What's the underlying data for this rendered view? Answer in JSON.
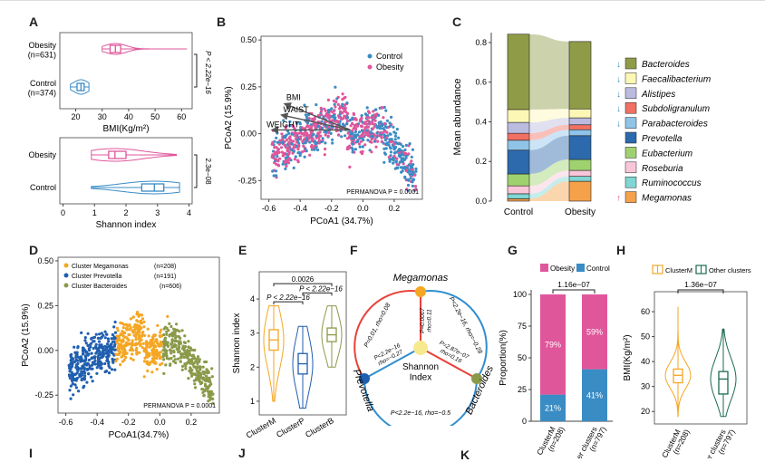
{
  "panel_labels": [
    "A",
    "B",
    "C",
    "D",
    "E",
    "F",
    "G",
    "H",
    "I",
    "J",
    "K"
  ],
  "chart_data": [
    {
      "id": "A_bmi",
      "type": "violin",
      "categories": [
        "Obesity\n(n=631)",
        "Control\n(n=374)"
      ],
      "xlabel": "BMI(Kg/m²)",
      "xlim": [
        14,
        64
      ],
      "xticks": [
        20,
        30,
        40,
        50,
        60
      ],
      "stats": [
        {
          "group": "Obesity",
          "n": 631,
          "min": 30,
          "q1": 33,
          "median": 35,
          "q3": 37,
          "max": 62
        },
        {
          "group": "Control",
          "n": 374,
          "min": 18,
          "q1": 20.5,
          "median": 22,
          "q3": 23.2,
          "max": 25
        }
      ],
      "pvalue": "P < 2.22e−16",
      "colors": {
        "Obesity": "#e0569b",
        "Control": "#3a8cc4"
      }
    },
    {
      "id": "A_shannon",
      "type": "violin",
      "categories": [
        "Obesity",
        "Control"
      ],
      "xlabel": "Shannon index",
      "xlim": [
        -0.1,
        4.1
      ],
      "xticks": [
        0,
        1,
        2,
        3,
        4
      ],
      "stats": [
        {
          "group": "Obesity",
          "min": 0.9,
          "q1": 1.45,
          "median": 1.65,
          "q3": 2.0,
          "max": 3.6
        },
        {
          "group": "Control",
          "min": 0.9,
          "q1": 2.5,
          "median": 2.9,
          "q3": 3.2,
          "max": 3.7
        }
      ],
      "pvalue": "2.3e−08"
    },
    {
      "id": "B",
      "type": "scatter",
      "xlabel": "PCoA1 (34.7%)",
      "ylabel": "PCoA2 (15.9%)",
      "xlim": [
        -0.65,
        0.38
      ],
      "ylim": [
        -0.35,
        0.52
      ],
      "xticks": [
        -0.6,
        -0.4,
        -0.2,
        0.0,
        0.2
      ],
      "yticks": [
        -0.25,
        0.0,
        0.25,
        0.5
      ],
      "series": [
        {
          "name": "Control",
          "color": "#3a8cc4"
        },
        {
          "name": "Obesity",
          "color": "#e0569b"
        }
      ],
      "vectors": [
        {
          "label": "BMI",
          "dx": -0.42,
          "dy": 0.14
        },
        {
          "label": "WAIST",
          "dx": -0.44,
          "dy": 0.08
        },
        {
          "label": "WEIGHT",
          "dx": -0.5,
          "dy": 0.0
        }
      ],
      "annotation": "PERMANOVA P = 0.0001"
    },
    {
      "id": "C",
      "type": "bar",
      "categories": [
        "Control",
        "Obesity"
      ],
      "ylabel": "Mean abundance",
      "ylim": [
        0,
        0.85
      ],
      "yticks": [
        0.0,
        0.2,
        0.4,
        0.6,
        0.8
      ],
      "series": [
        {
          "name": "Megamonas",
          "color": "#f5a14a",
          "values": [
            0.012,
            0.1
          ],
          "trend": "up"
        },
        {
          "name": "Ruminococcus",
          "color": "#7fd6d3",
          "values": [
            0.025,
            0.025
          ],
          "trend": ""
        },
        {
          "name": "Roseburia",
          "color": "#f9c5d8",
          "values": [
            0.04,
            0.03
          ],
          "trend": ""
        },
        {
          "name": "Eubacterium",
          "color": "#9fd26f",
          "values": [
            0.06,
            0.055
          ],
          "trend": ""
        },
        {
          "name": "Prevotella",
          "color": "#2c69ad",
          "values": [
            0.12,
            0.12
          ],
          "trend": ""
        },
        {
          "name": "Parabacteroides",
          "color": "#8fc4e8",
          "values": [
            0.05,
            0.03
          ],
          "trend": "down"
        },
        {
          "name": "Subdoligranulum",
          "color": "#f27063",
          "values": [
            0.035,
            0.025
          ],
          "trend": "down"
        },
        {
          "name": "Alistipes",
          "color": "#bbbbe0",
          "values": [
            0.055,
            0.035
          ],
          "trend": "down"
        },
        {
          "name": "Faecalibacterium",
          "color": "#fdf7b5",
          "values": [
            0.065,
            0.045
          ],
          "trend": "down"
        },
        {
          "name": "Bacteroides",
          "color": "#8f9b47",
          "values": [
            0.38,
            0.34
          ],
          "trend": "down"
        }
      ]
    },
    {
      "id": "D",
      "type": "scatter",
      "xlabel": "PCoA1(34.7%)",
      "ylabel": "PCoA2 (15.9%)",
      "xlim": [
        -0.65,
        0.38
      ],
      "ylim": [
        -0.35,
        0.52
      ],
      "xticks": [
        -0.6,
        -0.4,
        -0.2,
        0.0,
        0.2
      ],
      "yticks": [
        -0.25,
        0.0,
        0.25,
        0.5
      ],
      "series": [
        {
          "name": "Cluster Megamonas",
          "n": "(n=208)",
          "color": "#f5a623"
        },
        {
          "name": "Cluster Prevotella",
          "n": "(n=191)",
          "color": "#1f5fb0"
        },
        {
          "name": "Cluster Bacteroides",
          "n": "(n=606)",
          "color": "#8a9a4a"
        }
      ],
      "annotation": "PERMANOVA P = 0.0001"
    },
    {
      "id": "E",
      "type": "violin",
      "categories": [
        "ClusterM",
        "ClusterP",
        "ClusterB"
      ],
      "ylabel": "Shannon index",
      "ylim": [
        0.6,
        4.8
      ],
      "yticks": [
        1,
        2,
        3,
        4
      ],
      "stats": [
        {
          "group": "ClusterM",
          "min": 1.0,
          "q1": 2.5,
          "median": 2.8,
          "q3": 3.1,
          "max": 3.8,
          "color": "#f5a623"
        },
        {
          "group": "ClusterP",
          "min": 0.8,
          "q1": 1.8,
          "median": 2.1,
          "q3": 2.4,
          "max": 3.2,
          "color": "#1f5fb0"
        },
        {
          "group": "ClusterB",
          "min": 2.0,
          "q1": 2.75,
          "median": 2.95,
          "q3": 3.15,
          "max": 3.8,
          "color": "#8a9a4a"
        }
      ],
      "comparisons": [
        "0.0026",
        "P < 2.22e−16",
        "P < 2.22e−16"
      ]
    },
    {
      "id": "G",
      "type": "bar",
      "categories": [
        "ClusterM\n(n=208)",
        "Other clusters\n(n=797)"
      ],
      "ylabel": "Proportion(%)",
      "ylim": [
        0,
        100
      ],
      "yticks": [
        0,
        25,
        50,
        75,
        100
      ],
      "series": [
        {
          "name": "Control",
          "color": "#3a8cc4",
          "values": [
            21,
            41
          ],
          "labels": [
            "21%",
            "41%"
          ]
        },
        {
          "name": "Obesity",
          "color": "#e0569b",
          "values": [
            79,
            59
          ],
          "labels": [
            "79%",
            "59%"
          ]
        }
      ],
      "pvalue": "1.16e−07"
    },
    {
      "id": "H",
      "type": "violin",
      "categories": [
        "ClusterM\n(n=208)",
        "Other clusters\n(n=797)"
      ],
      "ylabel": "BMI(Kg/m²)",
      "ylim": [
        15,
        68
      ],
      "yticks": [
        20,
        30,
        40,
        50,
        60
      ],
      "stats": [
        {
          "group": "ClusterM",
          "min": 18,
          "q1": 31.5,
          "median": 34.5,
          "q3": 37,
          "max": 62,
          "color": "#f5a623"
        },
        {
          "group": "Other clusters",
          "min": 18,
          "q1": 27,
          "median": 33,
          "q3": 36,
          "max": 53,
          "color": "#1b6b52"
        }
      ],
      "series": [
        {
          "name": "ClusterM",
          "color": "#f5a623"
        },
        {
          "name": "Other  clusters",
          "color": "#1b6b52"
        }
      ],
      "pvalue": "1.36e−07"
    }
  ],
  "F": {
    "nodes": [
      {
        "name": "Megamonas",
        "color": "#f5a623"
      },
      {
        "name": "Prevotella",
        "color": "#1f5fb0"
      },
      {
        "name": "Bacteroides",
        "color": "#8a9a4a"
      },
      {
        "name": "Shannon\nIndex",
        "color": "#f7e98f"
      }
    ],
    "edges": [
      {
        "text": "P=0.01, rho=0.08"
      },
      {
        "text": "P<2.2e−16, rho=−0.28"
      },
      {
        "text": "P<2.2e−16, rho=−0.5"
      },
      {
        "text": "P=0.0007\nrho=0.11"
      },
      {
        "text": "P<2.2e−16\nrho=−0.27"
      },
      {
        "text": "P=2.87e−07\nrho=0.16"
      }
    ]
  }
}
